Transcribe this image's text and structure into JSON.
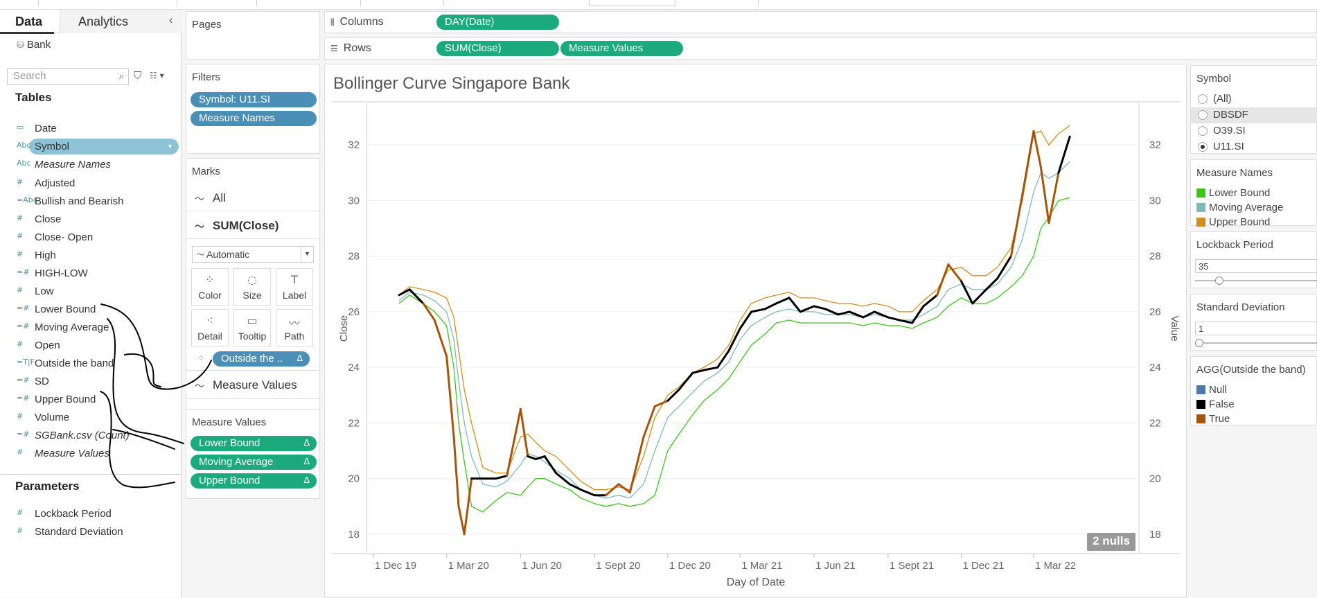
{
  "data_pane": {
    "tabs": [
      "Data",
      "Analytics"
    ],
    "collapse_icon": "chevron-left-icon",
    "datasource": "Bank",
    "search_placeholder": "Search",
    "tables_title": "Tables",
    "fields": [
      {
        "icon": "date",
        "glyph": "▭",
        "label": "Date",
        "italic": false
      },
      {
        "icon": "abc",
        "glyph": "Abc",
        "label": "Symbol",
        "italic": false,
        "selected": true
      },
      {
        "icon": "abc",
        "glyph": "Abc",
        "label": "Measure Names",
        "italic": true
      },
      {
        "icon": "measure",
        "glyph": "#",
        "label": "Adjusted",
        "italic": false
      },
      {
        "icon": "calc-abc",
        "glyph": "=Abc",
        "label": "Bullish and Bearish",
        "italic": false
      },
      {
        "icon": "measure",
        "glyph": "#",
        "label": "Close",
        "italic": false
      },
      {
        "icon": "measure",
        "glyph": "#",
        "label": "Close- Open",
        "italic": false
      },
      {
        "icon": "measure",
        "glyph": "#",
        "label": "High",
        "italic": false
      },
      {
        "icon": "calc-measure",
        "glyph": "=#",
        "label": "HIGH-LOW",
        "italic": false
      },
      {
        "icon": "measure",
        "glyph": "#",
        "label": "Low",
        "italic": false
      },
      {
        "icon": "calc-measure",
        "glyph": "=#",
        "label": "Lower Bound",
        "italic": false
      },
      {
        "icon": "calc-measure",
        "glyph": "=#",
        "label": "Moving Average",
        "italic": false
      },
      {
        "icon": "measure",
        "glyph": "#",
        "label": "Open",
        "italic": false
      },
      {
        "icon": "calc-bool",
        "glyph": "=T|F",
        "label": "Outside the band",
        "italic": false
      },
      {
        "icon": "calc-measure",
        "glyph": "=#",
        "label": "SD",
        "italic": false
      },
      {
        "icon": "calc-measure",
        "glyph": "=#",
        "label": "Upper Bound",
        "italic": false
      },
      {
        "icon": "measure",
        "glyph": "#",
        "label": "Volume",
        "italic": false
      },
      {
        "icon": "measure",
        "glyph": "=#",
        "label": "SGBank.csv (Count)",
        "italic": true
      },
      {
        "icon": "measure",
        "glyph": "#",
        "label": "Measure Values",
        "italic": true
      }
    ],
    "parameters_title": "Parameters",
    "parameters": [
      {
        "glyph": "#",
        "label": "Lockback Period"
      },
      {
        "glyph": "#",
        "label": "Standard Deviation"
      }
    ]
  },
  "shelves": {
    "pages_title": "Pages",
    "filters_title": "Filters",
    "filters": [
      "Symbol: U11.SI",
      "Measure Names"
    ],
    "marks_title": "Marks",
    "marks_all": "All",
    "marks_close": "SUM(Close)",
    "mark_type": "Automatic",
    "mark_buttons": [
      {
        "name": "color",
        "label": "Color",
        "icon": "palette-icon"
      },
      {
        "name": "size",
        "label": "Size",
        "icon": "size-icon"
      },
      {
        "name": "label",
        "label": "Label",
        "icon": "label-icon"
      },
      {
        "name": "detail",
        "label": "Detail",
        "icon": "detail-icon"
      },
      {
        "name": "tooltip",
        "label": "Tooltip",
        "icon": "tooltip-icon"
      },
      {
        "name": "path",
        "label": "Path",
        "icon": "path-icon"
      }
    ],
    "color_pill": "Outside the ..",
    "marks_measure_values": "Measure Values",
    "measure_values_title": "Measure Values",
    "measure_values": [
      "Lower Bound",
      "Moving Average",
      "Upper Bound"
    ],
    "columns_label": "Columns",
    "rows_label": "Rows",
    "columns_pills": [
      "DAY(Date)"
    ],
    "rows_pills": [
      "SUM(Close)",
      "Measure Values"
    ]
  },
  "sheet": {
    "title": "Bollinger Curve Singapore Bank",
    "nulls": "2 nulls"
  },
  "legends": {
    "symbol_title": "Symbol",
    "symbols": [
      {
        "label": "(All)",
        "checked": false
      },
      {
        "label": "DBSDF",
        "checked": false,
        "hover": true
      },
      {
        "label": "O39.SI",
        "checked": false
      },
      {
        "label": "U11.SI",
        "checked": true
      }
    ],
    "measure_names_title": "Measure Names",
    "measure_names": [
      {
        "label": "Lower Bound",
        "color": "#3cc41c"
      },
      {
        "label": "Moving Average",
        "color": "#7fb9bb"
      },
      {
        "label": "Upper Bound",
        "color": "#d28d1e"
      }
    ],
    "lockback_title": "Lockback Period",
    "lockback_value": "35",
    "lockback_level": 0.2,
    "sd_title": "Standard Deviation",
    "sd_value": "1",
    "sd_level": 0,
    "outside_title": "AGG(Outside the band)",
    "outside": [
      {
        "label": "Null",
        "color": "#4e79a7"
      },
      {
        "label": "False",
        "color": "#000000"
      },
      {
        "label": "True",
        "color": "#a65409"
      }
    ]
  },
  "chart_data": {
    "type": "line",
    "title": "Bollinger Curve Singapore Bank",
    "xlabel": "Day of Date",
    "ylabel_left": "Close",
    "ylabel_right": "Value",
    "x_ticks": [
      "1 Dec 19",
      "1 Mar 20",
      "1 Jun 20",
      "1 Sept 20",
      "1 Dec 20",
      "1 Mar 21",
      "1 Jun 21",
      "1 Sept 21",
      "1 Dec 21",
      "1 Mar 22"
    ],
    "y_ticks": [
      18,
      20,
      22,
      24,
      26,
      28,
      30,
      32
    ],
    "ylim": [
      17.3,
      33.5
    ],
    "xlim": [
      "2019-12-01",
      "2022-05-15"
    ],
    "x": [
      "2020-01-02",
      "2020-01-15",
      "2020-02-01",
      "2020-02-15",
      "2020-03-01",
      "2020-03-10",
      "2020-03-16",
      "2020-03-23",
      "2020-04-01",
      "2020-04-15",
      "2020-05-01",
      "2020-05-15",
      "2020-06-01",
      "2020-06-10",
      "2020-06-20",
      "2020-07-01",
      "2020-07-15",
      "2020-08-01",
      "2020-08-15",
      "2020-09-01",
      "2020-09-15",
      "2020-10-01",
      "2020-10-15",
      "2020-11-01",
      "2020-11-15",
      "2020-12-01",
      "2020-12-15",
      "2021-01-01",
      "2021-01-15",
      "2021-02-01",
      "2021-02-15",
      "2021-03-01",
      "2021-03-15",
      "2021-04-01",
      "2021-04-15",
      "2021-05-01",
      "2021-05-15",
      "2021-06-01",
      "2021-06-15",
      "2021-07-01",
      "2021-07-15",
      "2021-08-01",
      "2021-08-15",
      "2021-09-01",
      "2021-09-15",
      "2021-10-01",
      "2021-10-15",
      "2021-11-01",
      "2021-11-15",
      "2021-12-01",
      "2021-12-15",
      "2022-01-01",
      "2022-01-15",
      "2022-02-01",
      "2022-02-15",
      "2022-03-01",
      "2022-03-10",
      "2022-03-20",
      "2022-04-01",
      "2022-04-15"
    ],
    "series": [
      {
        "name": "SUM(Close)",
        "color": "#000000",
        "values": [
          26.6,
          26.8,
          26.3,
          25.7,
          24.4,
          21.5,
          19.0,
          18.0,
          20.0,
          20.0,
          20.0,
          20.1,
          22.5,
          20.8,
          20.7,
          20.8,
          20.2,
          19.8,
          19.6,
          19.4,
          19.4,
          19.8,
          19.5,
          21.5,
          22.6,
          22.8,
          23.2,
          23.8,
          23.9,
          24.0,
          24.6,
          25.4,
          26.0,
          26.1,
          26.3,
          26.5,
          26.0,
          26.2,
          26.1,
          25.9,
          26.0,
          25.8,
          26.0,
          25.8,
          25.7,
          25.6,
          26.2,
          26.6,
          27.7,
          27.1,
          26.3,
          26.8,
          27.2,
          28.0,
          30.2,
          32.5,
          31.2,
          29.2,
          31.0,
          32.3
        ]
      },
      {
        "name": "Upper Bound",
        "color": "#d28d1e",
        "values": [
          26.6,
          26.9,
          26.8,
          26.7,
          26.5,
          25.8,
          24.6,
          23.2,
          22.0,
          20.4,
          20.2,
          20.2,
          21.5,
          21.6,
          21.3,
          21.0,
          20.8,
          20.3,
          19.9,
          19.6,
          19.6,
          19.7,
          19.6,
          20.8,
          22.2,
          23.0,
          23.3,
          23.8,
          24.0,
          24.3,
          24.8,
          25.7,
          26.3,
          26.5,
          26.6,
          26.7,
          26.5,
          26.5,
          26.4,
          26.3,
          26.3,
          26.2,
          26.3,
          26.2,
          26.0,
          26.0,
          26.4,
          26.8,
          27.5,
          27.6,
          27.3,
          27.3,
          27.6,
          28.3,
          30.0,
          32.4,
          32.5,
          32.0,
          32.4,
          32.7
        ]
      },
      {
        "name": "Moving Average",
        "color": "#7fb9bb",
        "values": [
          26.4,
          26.7,
          26.6,
          26.4,
          26.0,
          25.0,
          23.5,
          22.0,
          20.8,
          19.8,
          19.7,
          19.9,
          20.5,
          20.9,
          20.8,
          20.6,
          20.3,
          20.0,
          19.6,
          19.4,
          19.3,
          19.4,
          19.3,
          19.8,
          21.0,
          22.2,
          22.6,
          23.1,
          23.5,
          23.8,
          24.2,
          25.0,
          25.5,
          25.8,
          26.0,
          26.1,
          26.0,
          26.0,
          25.9,
          25.9,
          25.9,
          25.8,
          25.9,
          25.8,
          25.7,
          25.7,
          25.9,
          26.2,
          26.8,
          27.0,
          26.8,
          26.8,
          27.0,
          27.6,
          28.6,
          30.3,
          31.0,
          30.8,
          31.0,
          31.4
        ]
      },
      {
        "name": "Lower Bound",
        "color": "#3cc41c",
        "values": [
          26.3,
          26.6,
          26.3,
          26.0,
          25.5,
          24.0,
          22.0,
          20.6,
          19.0,
          18.8,
          19.2,
          19.5,
          19.4,
          19.7,
          20.0,
          20.0,
          19.8,
          19.6,
          19.3,
          19.1,
          19.0,
          19.1,
          19.0,
          19.1,
          19.4,
          21.0,
          21.6,
          22.3,
          22.8,
          23.2,
          23.6,
          24.2,
          24.8,
          25.2,
          25.6,
          25.7,
          25.6,
          25.6,
          25.6,
          25.6,
          25.6,
          25.5,
          25.6,
          25.5,
          25.5,
          25.4,
          25.6,
          25.8,
          26.2,
          26.5,
          26.3,
          26.3,
          26.5,
          26.9,
          27.3,
          28.0,
          29.0,
          29.4,
          30.0,
          30.1
        ]
      }
    ]
  }
}
